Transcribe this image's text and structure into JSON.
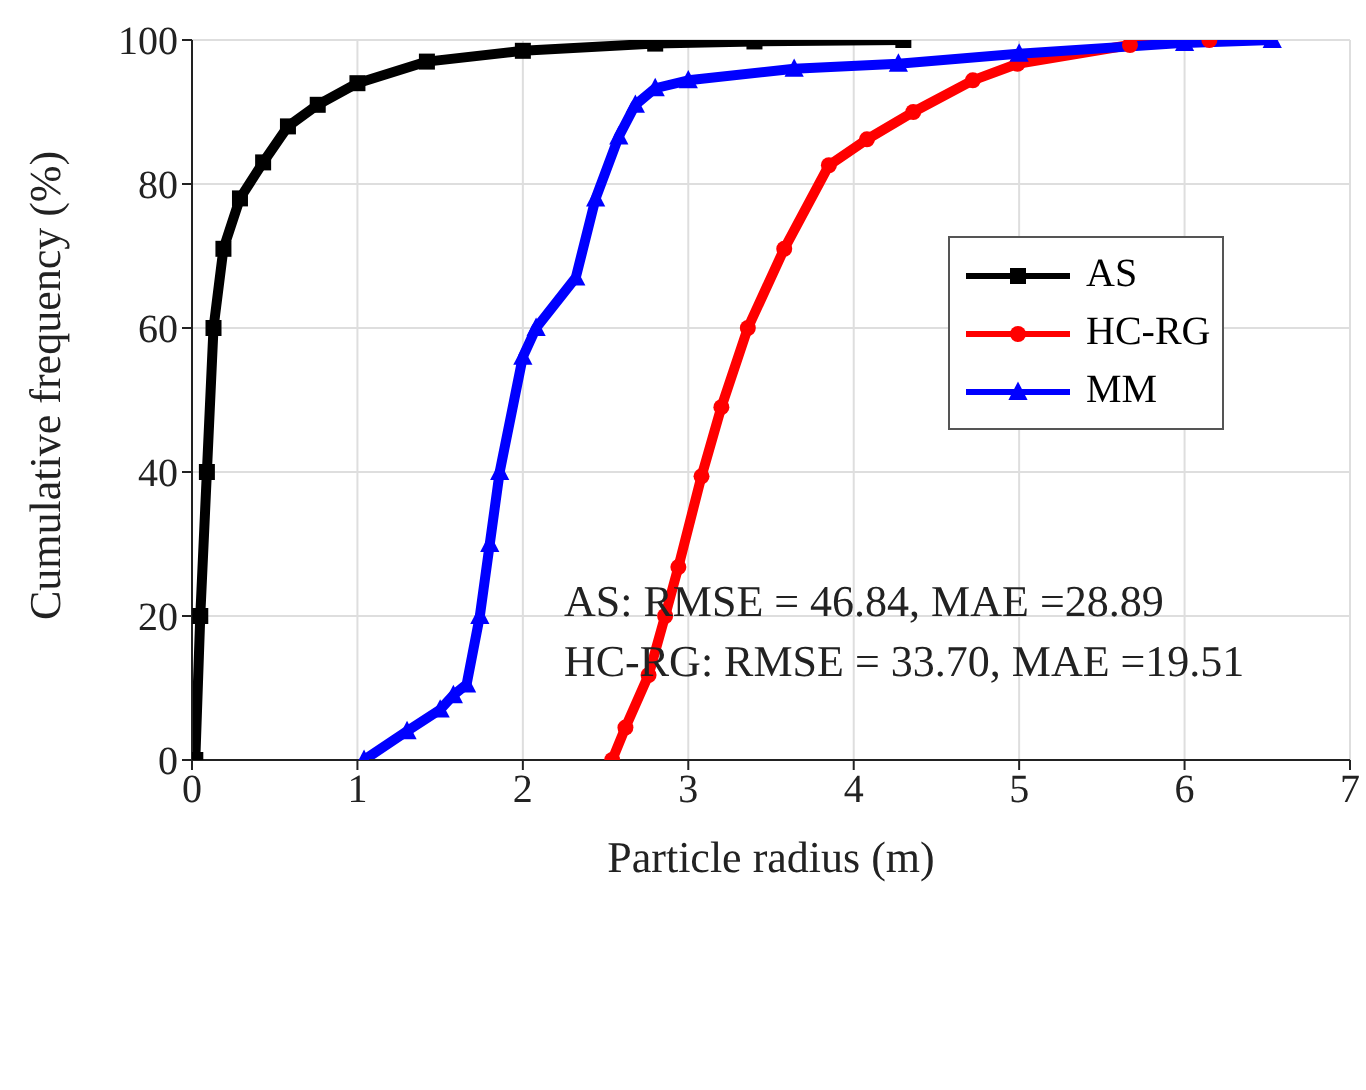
{
  "chart_data": {
    "type": "line",
    "xlabel": "Particle radius (m)",
    "ylabel": "Cumulative frequency (%)",
    "xlim": [
      0,
      7
    ],
    "xticks": [
      0,
      1,
      2,
      3,
      4,
      5,
      6,
      7
    ],
    "ylim": [
      0,
      100
    ],
    "yticks": [
      0,
      20,
      40,
      60,
      80,
      100
    ],
    "grid": true,
    "legend": "top right",
    "line_style": "solid",
    "annotations": [
      "AS: RMSE = 46.84, MAE =28.89",
      "HC-RG: RMSE = 33.70, MAE =19.51"
    ],
    "series": [
      {
        "name": "AS",
        "color": "#000000",
        "marker": "square",
        "x": [
          0.02,
          0.05,
          0.09,
          0.13,
          0.19,
          0.29,
          0.43,
          0.58,
          0.76,
          1.0,
          1.42,
          2.0,
          2.8,
          3.4,
          4.3
        ],
        "values": [
          0,
          20,
          40,
          60,
          71,
          78,
          83,
          88,
          91,
          94,
          97,
          98.5,
          99.5,
          99.8,
          100
        ]
      },
      {
        "name": "HC-RG",
        "color": "#ff0000",
        "marker": "circle",
        "x": [
          2.54,
          2.62,
          2.76,
          2.86,
          2.94,
          3.08,
          3.2,
          3.36,
          3.58,
          3.85,
          4.08,
          4.36,
          4.72,
          4.99,
          5.67,
          6.15
        ],
        "values": [
          0,
          4.5,
          11.8,
          20,
          26.8,
          39.4,
          49,
          60,
          71,
          82.6,
          86.2,
          90,
          94.4,
          96.7,
          99.3,
          100
        ]
      },
      {
        "name": "MM",
        "color": "#0000ff",
        "marker": "triangle",
        "x": [
          1.04,
          1.3,
          1.5,
          1.58,
          1.66,
          1.74,
          1.8,
          1.86,
          2.0,
          2.08,
          2.32,
          2.44,
          2.58,
          2.68,
          2.8,
          3.0,
          3.64,
          4.27,
          5.0,
          6.0,
          6.53
        ],
        "values": [
          0,
          4,
          7,
          9,
          10.5,
          20,
          30,
          40,
          56,
          60,
          67,
          78,
          86.6,
          91,
          93.3,
          94.4,
          96,
          96.7,
          98.1,
          99.6,
          100
        ]
      }
    ]
  }
}
